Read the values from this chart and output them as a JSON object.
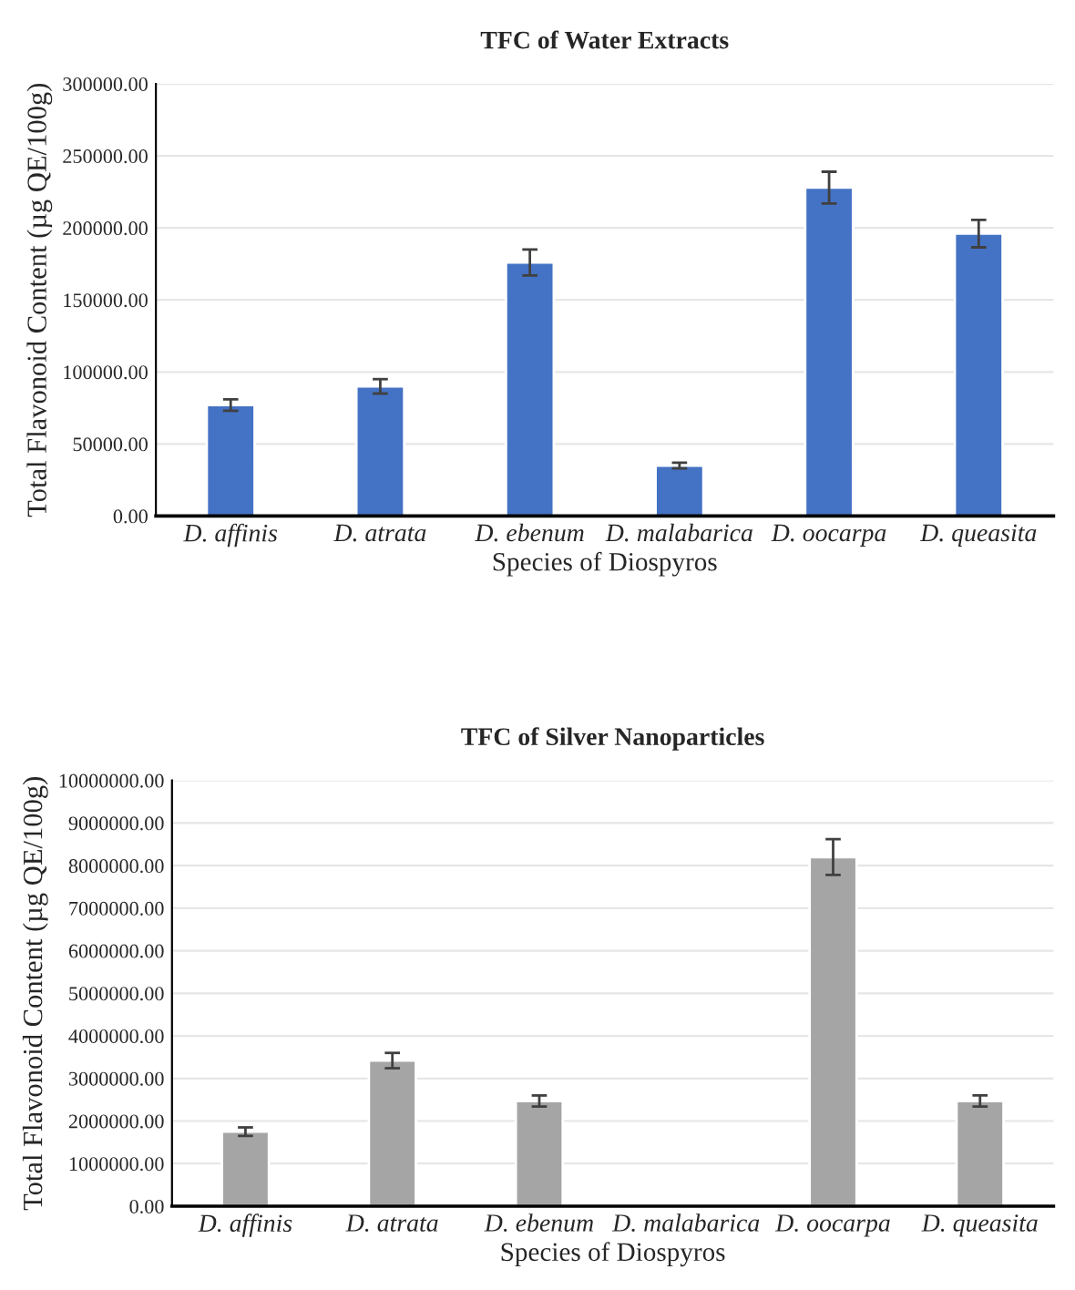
{
  "chart_data": [
    {
      "type": "bar",
      "title": "TFC of Water Extracts",
      "xlabel": "Species of Diospyros",
      "ylabel": "Total Flavonoid Content (µg QE/100g)",
      "categories": [
        "D. affinis",
        "D. atrata",
        "D. ebenum",
        "D. malabarica",
        "D. oocarpa",
        "D. queasita"
      ],
      "values": [
        77000,
        90000,
        176000,
        35000,
        228000,
        196000
      ],
      "errors": [
        4000,
        5000,
        9000,
        2000,
        11000,
        9500
      ],
      "color": "#4472c4",
      "ylim": [
        0,
        300000
      ],
      "yticks": [
        {
          "value": 0,
          "label": "0.00"
        },
        {
          "value": 50000,
          "label": "50000.00"
        },
        {
          "value": 100000,
          "label": "100000.00"
        },
        {
          "value": 150000,
          "label": "150000.00"
        },
        {
          "value": 200000,
          "label": "200000.00"
        },
        {
          "value": 250000,
          "label": "250000.00"
        },
        {
          "value": 300000,
          "label": "300000.00"
        }
      ],
      "grid": "y"
    },
    {
      "type": "bar",
      "title": "TFC of Silver Nanoparticles",
      "xlabel": "Species of Diospyros",
      "ylabel": "Total Flavonoid Content (µg QE/100g)",
      "categories": [
        "D. affinis",
        "D. atrata",
        "D. ebenum",
        "D. malabarica",
        "D. oocarpa",
        "D. queasita"
      ],
      "values": [
        1750000,
        3420000,
        2470000,
        null,
        8200000,
        2470000
      ],
      "errors": [
        100000,
        180000,
        130000,
        null,
        420000,
        130000
      ],
      "color": "#a5a5a5",
      "ylim": [
        0,
        10000000
      ],
      "yticks": [
        {
          "value": 0,
          "label": "0.00"
        },
        {
          "value": 1000000,
          "label": "1000000.00"
        },
        {
          "value": 2000000,
          "label": "2000000.00"
        },
        {
          "value": 3000000,
          "label": "3000000.00"
        },
        {
          "value": 4000000,
          "label": "4000000.00"
        },
        {
          "value": 5000000,
          "label": "5000000.00"
        },
        {
          "value": 6000000,
          "label": "6000000.00"
        },
        {
          "value": 7000000,
          "label": "7000000.00"
        },
        {
          "value": 8000000,
          "label": "8000000.00"
        },
        {
          "value": 9000000,
          "label": "9000000.00"
        },
        {
          "value": 10000000,
          "label": "10000000.00"
        }
      ],
      "grid": "y"
    }
  ]
}
